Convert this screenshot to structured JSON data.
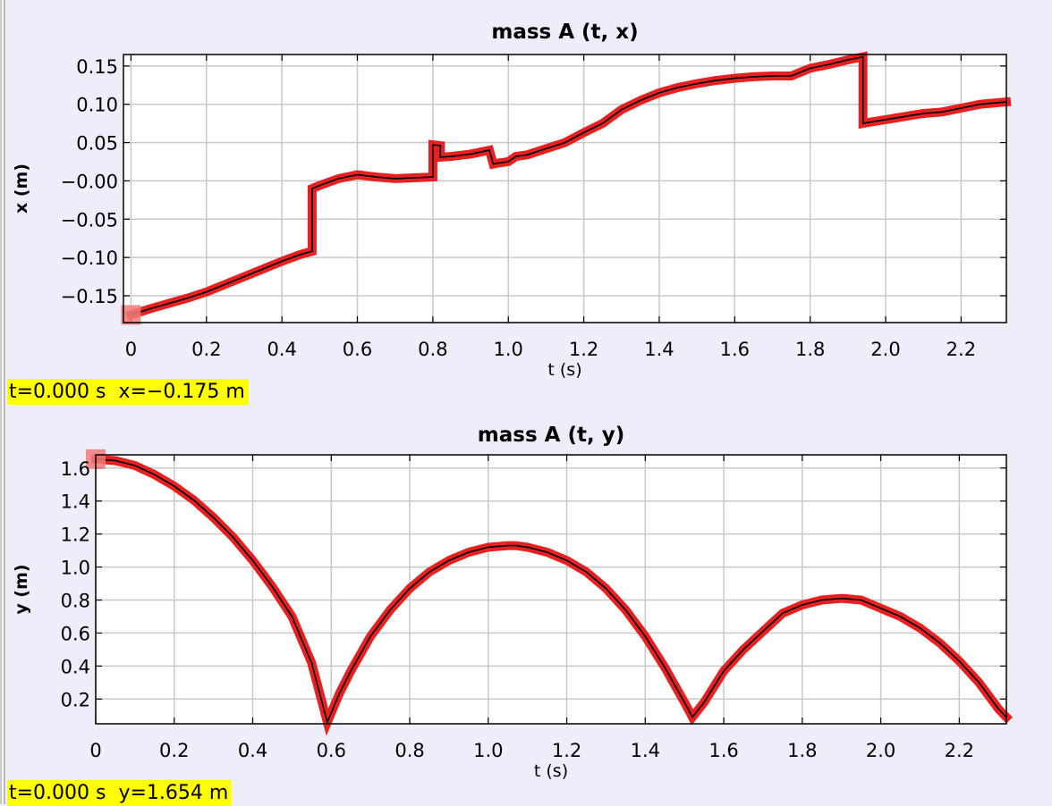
{
  "chart_data": [
    {
      "type": "line",
      "title": "mass A (t, x)",
      "xlabel": "t (s)",
      "ylabel": "x (m)",
      "xlim": [
        -0.02,
        2.32
      ],
      "ylim": [
        -0.185,
        0.165
      ],
      "xticks": [
        0,
        0.2,
        0.4,
        0.6,
        0.8,
        1.0,
        1.2,
        1.4,
        1.6,
        1.8,
        2.0,
        2.2
      ],
      "xtick_labels": [
        "0",
        "0.2",
        "0.4",
        "0.6",
        "0.8",
        "1.0",
        "1.2",
        "1.4",
        "1.6",
        "1.8",
        "2.0",
        "2.2"
      ],
      "yticks": [
        0.15,
        0.1,
        0.05,
        0.0,
        -0.05,
        -0.1,
        -0.15
      ],
      "ytick_labels": [
        "0.15",
        "0.10",
        "0.05",
        "−0.00",
        "−0.05",
        "−0.10",
        "−0.15"
      ],
      "grid": true,
      "line_color": "#000000",
      "marker_color": "#e82020",
      "highlight_color": "#f07a7a",
      "highlight_point": [
        0,
        -0.175
      ],
      "readout": "t=0.000 s  x=−0.175 m",
      "series": [
        {
          "x": [
            0,
            0.05,
            0.1,
            0.15,
            0.2,
            0.25,
            0.3,
            0.35,
            0.4,
            0.45,
            0.48,
            0.48,
            0.5,
            0.55,
            0.6,
            0.65,
            0.7,
            0.75,
            0.8,
            0.8,
            0.82,
            0.82,
            0.85,
            0.9,
            0.95,
            0.96,
            0.97,
            1.0,
            1.02,
            1.05,
            1.1,
            1.15,
            1.2,
            1.25,
            1.3,
            1.35,
            1.4,
            1.45,
            1.5,
            1.55,
            1.6,
            1.65,
            1.7,
            1.75,
            1.8,
            1.85,
            1.9,
            1.94,
            1.94,
            1.95,
            2.0,
            2.05,
            2.1,
            2.15,
            2.2,
            2.25,
            2.32
          ],
          "y": [
            -0.175,
            -0.167,
            -0.16,
            -0.153,
            -0.145,
            -0.135,
            -0.125,
            -0.115,
            -0.105,
            -0.096,
            -0.092,
            -0.01,
            -0.006,
            0.003,
            0.008,
            0.005,
            0.003,
            0.004,
            0.005,
            0.047,
            0.046,
            0.031,
            0.032,
            0.035,
            0.04,
            0.022,
            0.023,
            0.025,
            0.032,
            0.034,
            0.042,
            0.05,
            0.063,
            0.075,
            0.093,
            0.105,
            0.115,
            0.122,
            0.127,
            0.131,
            0.134,
            0.136,
            0.137,
            0.137,
            0.147,
            0.152,
            0.158,
            0.162,
            0.075,
            0.076,
            0.08,
            0.084,
            0.088,
            0.09,
            0.095,
            0.1,
            0.103
          ]
        }
      ]
    },
    {
      "type": "line",
      "title": "mass A (t, y)",
      "xlabel": "t (s)",
      "ylabel": "y (m)",
      "xlim": [
        0,
        2.32
      ],
      "ylim": [
        0.05,
        1.68
      ],
      "xticks": [
        0,
        0.2,
        0.4,
        0.6,
        0.8,
        1.0,
        1.2,
        1.4,
        1.6,
        1.8,
        2.0,
        2.2
      ],
      "xtick_labels": [
        "0",
        "0.2",
        "0.4",
        "0.6",
        "0.8",
        "1.0",
        "1.2",
        "1.4",
        "1.6",
        "1.8",
        "2.0",
        "2.2"
      ],
      "yticks": [
        1.6,
        1.4,
        1.2,
        1.0,
        0.8,
        0.6,
        0.4,
        0.2
      ],
      "ytick_labels": [
        "1.6",
        "1.4",
        "1.2",
        "1.0",
        "0.8",
        "0.6",
        "0.4",
        "0.2"
      ],
      "grid": true,
      "line_color": "#000000",
      "marker_color": "#e82020",
      "highlight_color": "#f07a7a",
      "highlight_point": [
        0,
        1.654
      ],
      "readout": "t=0.000 s  y=1.654 m",
      "series": [
        {
          "x": [
            0,
            0.05,
            0.1,
            0.15,
            0.2,
            0.25,
            0.3,
            0.35,
            0.4,
            0.45,
            0.5,
            0.55,
            0.59,
            0.62,
            0.65,
            0.7,
            0.75,
            0.8,
            0.85,
            0.9,
            0.95,
            1.0,
            1.05,
            1.07,
            1.1,
            1.15,
            1.2,
            1.25,
            1.3,
            1.35,
            1.4,
            1.45,
            1.5,
            1.52,
            1.55,
            1.6,
            1.65,
            1.7,
            1.75,
            1.8,
            1.85,
            1.9,
            1.95,
            2.0,
            2.05,
            2.1,
            2.15,
            2.2,
            2.25,
            2.3,
            2.32
          ],
          "y": [
            1.654,
            1.645,
            1.615,
            1.56,
            1.49,
            1.405,
            1.3,
            1.18,
            1.04,
            0.88,
            0.7,
            0.42,
            0.06,
            0.23,
            0.37,
            0.58,
            0.74,
            0.87,
            0.97,
            1.04,
            1.09,
            1.12,
            1.13,
            1.13,
            1.12,
            1.09,
            1.04,
            0.97,
            0.87,
            0.74,
            0.58,
            0.39,
            0.18,
            0.09,
            0.18,
            0.37,
            0.5,
            0.61,
            0.72,
            0.77,
            0.8,
            0.81,
            0.8,
            0.75,
            0.7,
            0.63,
            0.54,
            0.43,
            0.3,
            0.14,
            0.09
          ]
        }
      ]
    }
  ]
}
